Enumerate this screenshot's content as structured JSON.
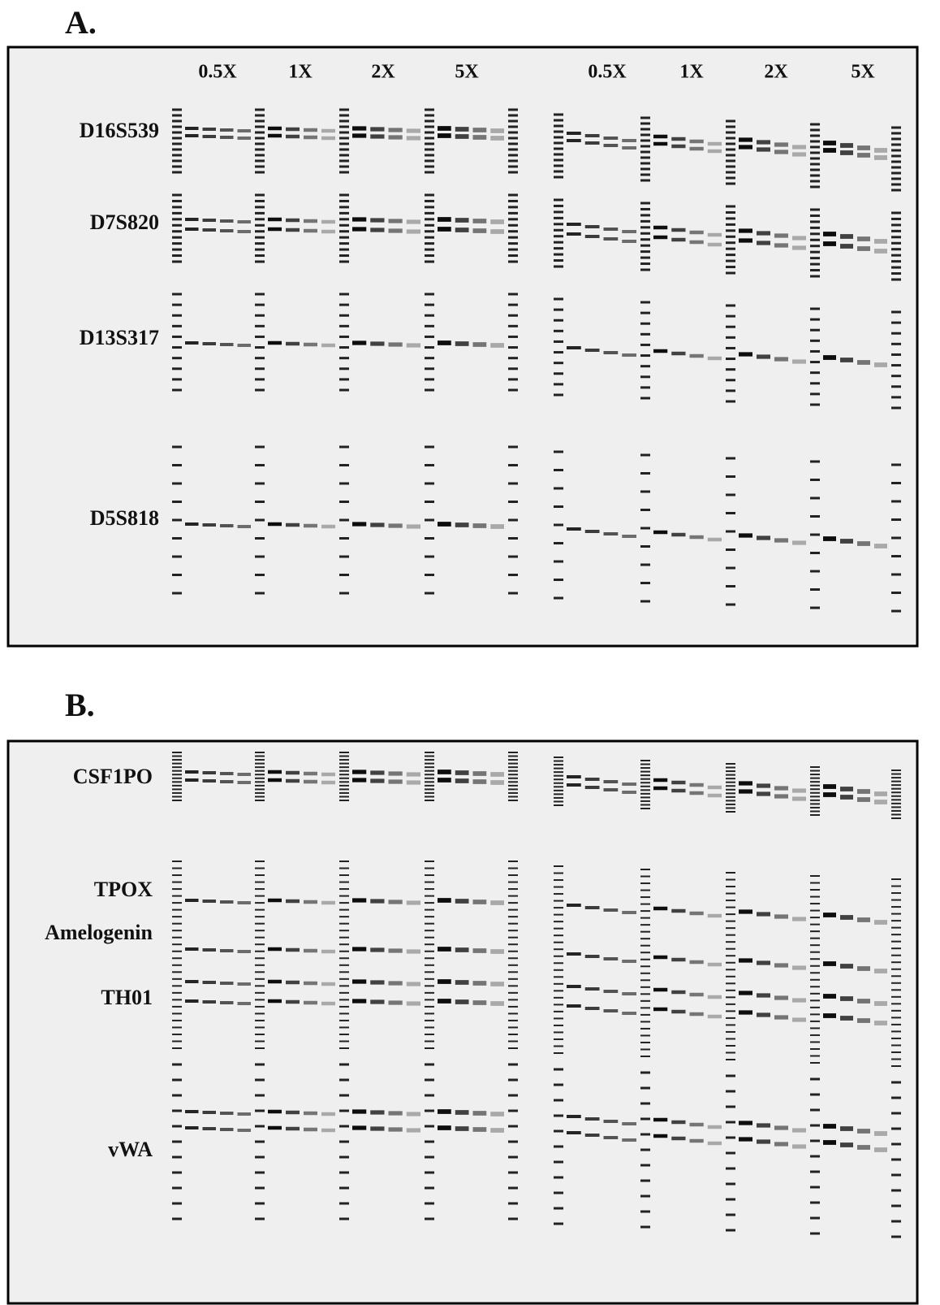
{
  "panel_a": {
    "label": "A.",
    "columns": [
      "0.5X",
      "1X",
      "2X",
      "5X",
      "0.5X",
      "1X",
      "2X",
      "5X"
    ],
    "loci": [
      "D16S539",
      "D7S820",
      "D13S317",
      "D5S818"
    ]
  },
  "panel_b": {
    "label": "B.",
    "loci": [
      "CSF1PO",
      "TPOX",
      "Amelogenin",
      "TH01",
      "vWA"
    ]
  }
}
